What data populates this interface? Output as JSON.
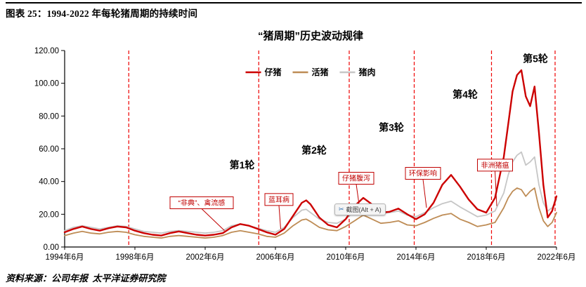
{
  "header": {
    "figure_label": "图表 25：1994-2022 年每轮猪周期的持续时间"
  },
  "source": "资料来源：公司年报  太平洋证券研究院",
  "snip_tooltip": {
    "label": "截图(Alt + A)",
    "icon": "scissors-icon"
  },
  "chart_data": {
    "type": "line",
    "title": "“猪周期”历史波动规律",
    "xlabel": "",
    "ylabel": "",
    "grid": false,
    "legend_position": "top-center",
    "x_range": [
      1994.5,
      2022.5
    ],
    "ylim": [
      0,
      120
    ],
    "yticks": [
      0,
      20,
      40,
      60,
      80,
      100,
      120
    ],
    "ytick_labels": [
      "0.00",
      "20.00",
      "40.00",
      "60.00",
      "80.00",
      "100.00",
      "120.00"
    ],
    "xticks": [
      1994.5,
      1998.5,
      2002.5,
      2006.5,
      2010.5,
      2014.5,
      2018.5,
      2022.5
    ],
    "xtick_labels": [
      "1994年6月",
      "1998年6月",
      "2002年6月",
      "2006年6月",
      "2010年6月",
      "2014年6月",
      "2018年6月",
      "2022年6月"
    ],
    "divider_color": "#EE0000",
    "cycle_dividers": [
      1998.15,
      2005.55,
      2010.7,
      2014.4,
      2018.8,
      2022.42
    ],
    "series": [
      {
        "name": "仔猪",
        "color": "#CC0000",
        "points": [
          [
            1994.5,
            9
          ],
          [
            1995,
            11
          ],
          [
            1995.5,
            12.5
          ],
          [
            1996,
            11
          ],
          [
            1996.5,
            10
          ],
          [
            1997,
            11.5
          ],
          [
            1997.5,
            12.5
          ],
          [
            1998,
            12
          ],
          [
            1998.5,
            10
          ],
          [
            1999,
            8.5
          ],
          [
            1999.5,
            7.5
          ],
          [
            2000,
            7
          ],
          [
            2000.5,
            8.5
          ],
          [
            2001,
            9.5
          ],
          [
            2001.5,
            8.5
          ],
          [
            2002,
            7.5
          ],
          [
            2002.5,
            7
          ],
          [
            2003,
            7.5
          ],
          [
            2003.5,
            8.5
          ],
          [
            2004,
            12
          ],
          [
            2004.5,
            14
          ],
          [
            2005,
            13
          ],
          [
            2005.5,
            11
          ],
          [
            2006,
            9
          ],
          [
            2006.5,
            7.5
          ],
          [
            2007,
            11
          ],
          [
            2007.5,
            19
          ],
          [
            2008,
            27
          ],
          [
            2008.25,
            28.5
          ],
          [
            2008.5,
            26
          ],
          [
            2009,
            18
          ],
          [
            2009.5,
            13.5
          ],
          [
            2010,
            12
          ],
          [
            2010.5,
            17
          ],
          [
            2011,
            25
          ],
          [
            2011.5,
            30
          ],
          [
            2012,
            26
          ],
          [
            2012.5,
            21
          ],
          [
            2013,
            21.5
          ],
          [
            2013.5,
            23.5
          ],
          [
            2014,
            20
          ],
          [
            2014.5,
            17
          ],
          [
            2015,
            20
          ],
          [
            2015.5,
            27
          ],
          [
            2016,
            38
          ],
          [
            2016.5,
            44
          ],
          [
            2017,
            37
          ],
          [
            2017.5,
            29
          ],
          [
            2018,
            23
          ],
          [
            2018.5,
            21
          ],
          [
            2019,
            30
          ],
          [
            2019.5,
            55
          ],
          [
            2019.75,
            75
          ],
          [
            2020,
            95
          ],
          [
            2020.25,
            105
          ],
          [
            2020.5,
            108
          ],
          [
            2020.75,
            92
          ],
          [
            2021,
            86
          ],
          [
            2021.25,
            98
          ],
          [
            2021.5,
            70
          ],
          [
            2021.75,
            38
          ],
          [
            2022,
            18
          ],
          [
            2022.25,
            22
          ],
          [
            2022.5,
            31
          ]
        ]
      },
      {
        "name": "活猪",
        "color": "#BE8C55",
        "points": [
          [
            1994.5,
            7
          ],
          [
            1995,
            8.5
          ],
          [
            1995.5,
            9.5
          ],
          [
            1996,
            8.5
          ],
          [
            1996.5,
            8
          ],
          [
            1997,
            9
          ],
          [
            1997.5,
            9.5
          ],
          [
            1998,
            9
          ],
          [
            1998.5,
            7.5
          ],
          [
            1999,
            6.5
          ],
          [
            1999.5,
            6
          ],
          [
            2000,
            5.5
          ],
          [
            2000.5,
            6.5
          ],
          [
            2001,
            7
          ],
          [
            2001.5,
            6.5
          ],
          [
            2002,
            6
          ],
          [
            2002.5,
            5.5
          ],
          [
            2003,
            6
          ],
          [
            2003.5,
            7
          ],
          [
            2004,
            9
          ],
          [
            2004.5,
            10
          ],
          [
            2005,
            9
          ],
          [
            2005.5,
            8
          ],
          [
            2006,
            6.5
          ],
          [
            2006.5,
            6
          ],
          [
            2007,
            8.5
          ],
          [
            2007.5,
            13
          ],
          [
            2008,
            16.5
          ],
          [
            2008.25,
            17
          ],
          [
            2008.5,
            15.5
          ],
          [
            2009,
            12
          ],
          [
            2009.5,
            10.5
          ],
          [
            2010,
            10
          ],
          [
            2010.5,
            12.5
          ],
          [
            2011,
            16
          ],
          [
            2011.5,
            19.5
          ],
          [
            2012,
            17
          ],
          [
            2012.5,
            14.5
          ],
          [
            2013,
            15
          ],
          [
            2013.5,
            16
          ],
          [
            2014,
            13.5
          ],
          [
            2014.5,
            13
          ],
          [
            2015,
            15
          ],
          [
            2015.5,
            17.5
          ],
          [
            2016,
            19.5
          ],
          [
            2016.5,
            20.5
          ],
          [
            2017,
            17
          ],
          [
            2017.5,
            15
          ],
          [
            2018,
            12.5
          ],
          [
            2018.5,
            13.5
          ],
          [
            2019,
            15
          ],
          [
            2019.5,
            24
          ],
          [
            2019.75,
            30
          ],
          [
            2020,
            34
          ],
          [
            2020.25,
            36
          ],
          [
            2020.5,
            35
          ],
          [
            2020.75,
            31
          ],
          [
            2021,
            34
          ],
          [
            2021.25,
            36
          ],
          [
            2021.5,
            24
          ],
          [
            2021.75,
            16
          ],
          [
            2022,
            12.5
          ],
          [
            2022.25,
            15
          ],
          [
            2022.5,
            21
          ]
        ]
      },
      {
        "name": "猪肉",
        "color": "#C6C6C6",
        "points": [
          [
            1994.5,
            10
          ],
          [
            1995,
            12
          ],
          [
            1995.5,
            13
          ],
          [
            1996,
            12
          ],
          [
            1996.5,
            11
          ],
          [
            1997,
            12
          ],
          [
            1997.5,
            13
          ],
          [
            1998,
            12.5
          ],
          [
            1998.5,
            11
          ],
          [
            1999,
            9.5
          ],
          [
            1999.5,
            9
          ],
          [
            2000,
            8.5
          ],
          [
            2000.5,
            9.5
          ],
          [
            2001,
            10
          ],
          [
            2001.5,
            9.5
          ],
          [
            2002,
            9
          ],
          [
            2002.5,
            8.5
          ],
          [
            2003,
            9
          ],
          [
            2003.5,
            10
          ],
          [
            2004,
            13
          ],
          [
            2004.5,
            14
          ],
          [
            2005,
            13
          ],
          [
            2005.5,
            11.5
          ],
          [
            2006,
            10
          ],
          [
            2006.5,
            9
          ],
          [
            2007,
            12
          ],
          [
            2007.5,
            18
          ],
          [
            2008,
            22.5
          ],
          [
            2008.25,
            23
          ],
          [
            2008.5,
            21
          ],
          [
            2009,
            17
          ],
          [
            2009.5,
            15
          ],
          [
            2010,
            14.5
          ],
          [
            2010.5,
            17
          ],
          [
            2011,
            22
          ],
          [
            2011.5,
            26
          ],
          [
            2012,
            23.5
          ],
          [
            2012.5,
            20.5
          ],
          [
            2013,
            21
          ],
          [
            2013.5,
            22
          ],
          [
            2014,
            19.5
          ],
          [
            2014.5,
            18.5
          ],
          [
            2015,
            21
          ],
          [
            2015.5,
            24
          ],
          [
            2016,
            26.5
          ],
          [
            2016.5,
            28
          ],
          [
            2017,
            24.5
          ],
          [
            2017.5,
            21.5
          ],
          [
            2018,
            18.5
          ],
          [
            2018.5,
            19.5
          ],
          [
            2019,
            22
          ],
          [
            2019.5,
            33
          ],
          [
            2019.75,
            44
          ],
          [
            2020,
            52
          ],
          [
            2020.25,
            56
          ],
          [
            2020.5,
            58
          ],
          [
            2020.75,
            50
          ],
          [
            2021,
            52
          ],
          [
            2021.25,
            55
          ],
          [
            2021.5,
            38
          ],
          [
            2021.75,
            27
          ],
          [
            2022,
            22
          ],
          [
            2022.25,
            24
          ],
          [
            2022.5,
            29
          ]
        ]
      }
    ],
    "cycle_labels": [
      {
        "label": "第1轮",
        "x": 2004.6,
        "y": 48
      },
      {
        "label": "第2轮",
        "x": 2008.7,
        "y": 57
      },
      {
        "label": "第3轮",
        "x": 2013.1,
        "y": 71
      },
      {
        "label": "第4轮",
        "x": 2017.3,
        "y": 91
      },
      {
        "label": "第5轮",
        "x": 2021.3,
        "y": 113
      }
    ],
    "events": [
      {
        "label": "“非典”、禽流感",
        "x": 2002.3,
        "y": 27,
        "tx": 2003.6,
        "ty": 10
      },
      {
        "label": "蓝耳病",
        "x": 2006.7,
        "y": 29,
        "tx": 2006.8,
        "ty": 11
      },
      {
        "label": "仔猪腹泻",
        "x": 2011.1,
        "y": 42,
        "tx": 2011.3,
        "ty": 23
      },
      {
        "label": "环保影响",
        "x": 2014.9,
        "y": 45,
        "tx": 2015.1,
        "ty": 24
      },
      {
        "label": "非洲猪瘟",
        "x": 2019.0,
        "y": 50,
        "tx": 2019.1,
        "ty": 25
      }
    ]
  }
}
